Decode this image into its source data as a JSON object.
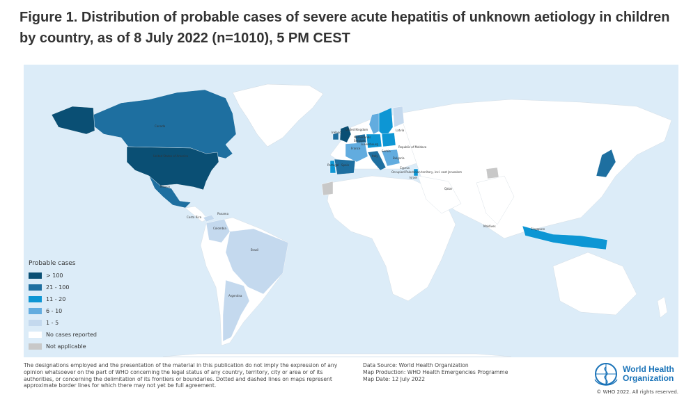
{
  "title": "Figure 1. Distribution of probable cases of severe acute hepatitis of unknown aetiology in children by country, as of 8 July 2022 (n=1010), 5 PM CEST",
  "colors": {
    "ocean": "#dcecf8",
    "no_cases": "#ffffff",
    "gt_100": "#0a4f74",
    "c21_100": "#1e6fa0",
    "c11_20": "#0d96d4",
    "c6_10": "#62acdf",
    "c1_5": "#c4d9ee",
    "not_applicable": "#c8c8c8",
    "who_blue": "#1a73b8"
  },
  "legend": {
    "title": "Probable cases",
    "items": [
      {
        "label": "> 100",
        "color": "#0a4f74"
      },
      {
        "label": "21 - 100",
        "color": "#1e6fa0"
      },
      {
        "label": "11 - 20",
        "color": "#0d96d4"
      },
      {
        "label": "6 - 10",
        "color": "#62acdf"
      },
      {
        "label": "1 - 5",
        "color": "#c4d9ee"
      },
      {
        "label": "No cases reported",
        "color": "#ffffff"
      },
      {
        "label": "Not applicable",
        "color": "#c8c8c8"
      }
    ]
  },
  "map_labels": {
    "canada": "Canada",
    "usa": "United States of America",
    "mexico": "Mexico",
    "panama": "Panama",
    "costa_rica": "Costa Rica",
    "colombia": "Colombia",
    "brazil": "Brazil",
    "argentina": "Argentina",
    "uk": "United Kingdom",
    "ireland": "Ireland",
    "netherlands": "Netherlands",
    "belgium": "Belgium",
    "luxembourg": "Luxembourg",
    "france": "France",
    "portugal": "Portugal",
    "spain": "Spain",
    "italy": "Italy",
    "serbia": "Serbia",
    "bulgaria": "Bulgaria",
    "cyprus": "Cyprus",
    "palestine": "Occupied Palestinian territory, incl. east Jerusalem",
    "israel": "Israel",
    "qatar": "Qatar",
    "moldova": "Republic of Moldova",
    "latvia": "Latvia",
    "maldives": "Maldives",
    "singapore": "Singapore"
  },
  "disclaimer": "The designations employed and the presentation of the material in this publication do not imply the expression of any opinion whatsoever on the part of WHO concerning the legal status of any country, territory, city or area or of its authorities, or concerning the delimitation of its frontiers or boundaries. Dotted and dashed lines on maps represent approximate border lines for which there may not yet be full agreement.",
  "source": {
    "data_source": "Data Source: World Health Organization",
    "map_production": "Map Production: WHO Health Emergencies Programme",
    "map_date": "Map Date: 12 July 2022"
  },
  "logo": {
    "line1": "World Health",
    "line2": "Organization"
  },
  "copyright": "© WHO 2022. All rights reserved."
}
